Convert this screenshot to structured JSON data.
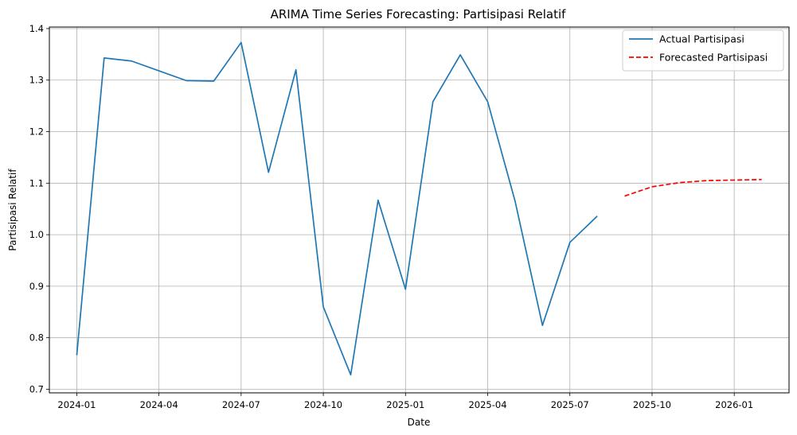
{
  "chart_data": {
    "type": "line",
    "title": "ARIMA Time Series Forecasting: Partisipasi Relatif",
    "xlabel": "Date",
    "ylabel": "Partisipasi Relatif",
    "xlim": [
      "2023-12-01",
      "2026-03-01"
    ],
    "ylim": [
      0.693,
      1.403
    ],
    "x_ticks": [
      "2024-01",
      "2024-04",
      "2024-07",
      "2024-10",
      "2025-01",
      "2025-04",
      "2025-07",
      "2025-10",
      "2026-01"
    ],
    "y_ticks": [
      0.7,
      0.8,
      0.9,
      1.0,
      1.1,
      1.2,
      1.3,
      1.4
    ],
    "y_tick_labels": [
      "0.7",
      "0.8",
      "0.9",
      "1.0",
      "1.1",
      "1.2",
      "1.3",
      "1.4"
    ],
    "grid": true,
    "legend_position": "top-right",
    "series": [
      {
        "name": "Actual Partisipasi",
        "color": "#1f77b4",
        "style": "solid",
        "x": [
          "2024-01",
          "2024-02",
          "2024-03",
          "2024-04",
          "2024-05",
          "2024-06",
          "2024-07",
          "2024-08",
          "2024-09",
          "2024-10",
          "2024-11",
          "2024-12",
          "2025-01",
          "2025-02",
          "2025-03",
          "2025-04",
          "2025-05",
          "2025-06",
          "2025-07",
          "2025-08"
        ],
        "values": [
          0.766,
          1.343,
          1.337,
          1.318,
          1.299,
          1.298,
          1.373,
          1.121,
          1.32,
          0.86,
          0.728,
          1.067,
          0.894,
          1.258,
          1.349,
          1.258,
          1.065,
          0.824,
          0.985,
          1.036
        ]
      },
      {
        "name": "Forecasted Partisipasi",
        "color": "#ff0000",
        "style": "dashed",
        "x": [
          "2025-09",
          "2025-10",
          "2025-11",
          "2025-12",
          "2026-01",
          "2026-02"
        ],
        "values": [
          1.075,
          1.093,
          1.101,
          1.105,
          1.106,
          1.107
        ]
      }
    ]
  }
}
